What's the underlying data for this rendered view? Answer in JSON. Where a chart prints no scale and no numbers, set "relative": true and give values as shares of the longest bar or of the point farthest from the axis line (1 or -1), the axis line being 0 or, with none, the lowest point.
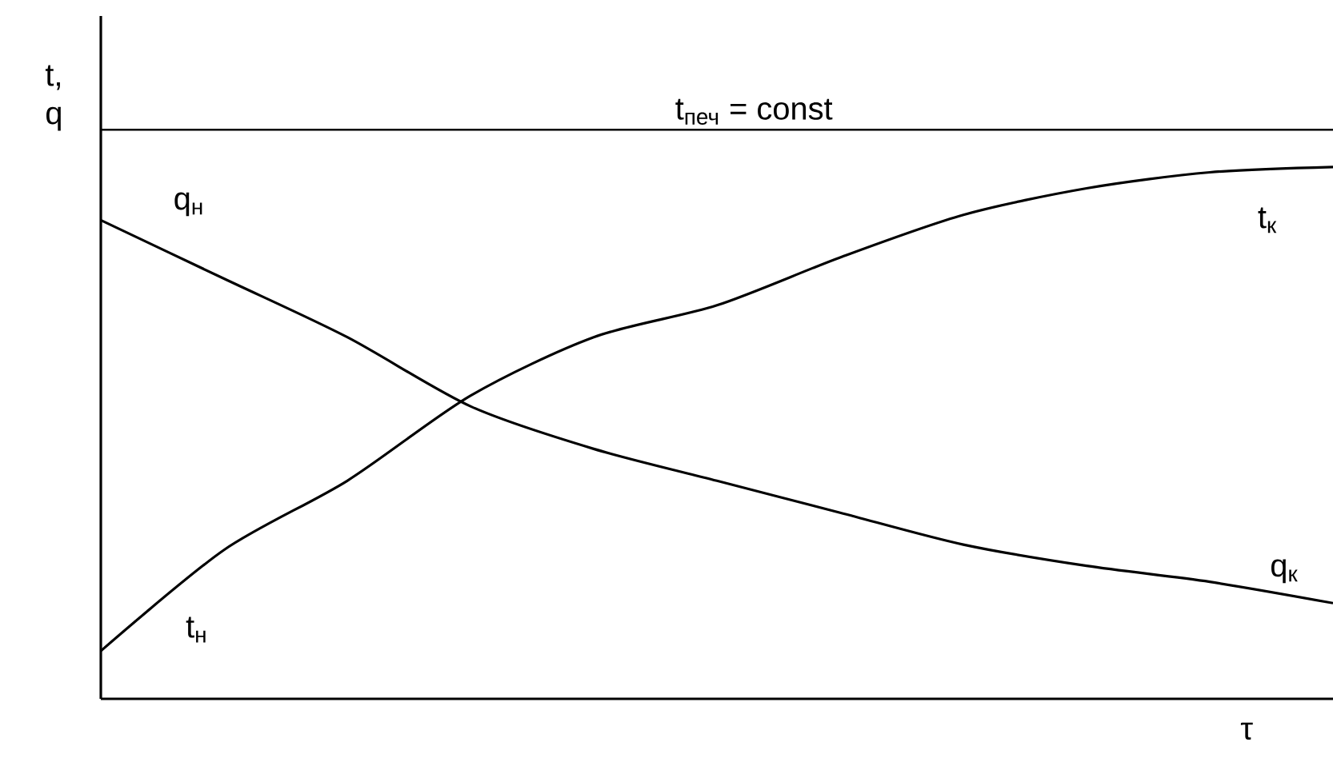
{
  "chart_data": {
    "type": "line",
    "relative": true,
    "ylabel": "t, q",
    "xlabel": "τ",
    "tick_labels": false,
    "marker": "none",
    "categories": [
      null,
      null,
      null,
      null,
      null,
      null,
      null,
      null,
      null,
      null,
      null
    ],
    "series": [
      {
        "color": "#000000",
        "values": [
          0.09,
          0.28,
          0.41,
          0.57,
          0.68,
          0.74,
          0.83,
          0.91,
          0.96,
          0.99,
          1
        ]
      },
      {
        "color": "#000000",
        "values": [
          0.9,
          0.79,
          0.68,
          0.55,
          0.47,
          0.41,
          0.35,
          0.29,
          0.25,
          0.22,
          0.18
        ]
      }
    ],
    "ref_lines": [
      {
        "axis": "y",
        "value": 1.07,
        "label": "t$_{печ}$ = const",
        "color": "#000000"
      }
    ],
    "annotations": [
      "q$_{н}$",
      "t$_{н}$",
      "t$_{к}$",
      "q$_{к}$"
    ]
  }
}
